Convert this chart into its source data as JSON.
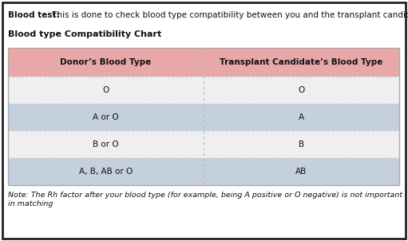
{
  "title_bold": "Blood test:",
  "title_normal": " This is done to check blood type compatibility between you and the transplant candidate.",
  "subtitle": "Blood type Compatibility Chart",
  "col_headers": [
    "Donor’s Blood Type",
    "Transplant Candidate’s Blood Type"
  ],
  "rows": [
    [
      "O",
      "O"
    ],
    [
      "A or O",
      "A"
    ],
    [
      "B or O",
      "B"
    ],
    [
      "A, B, AB or O",
      "AB"
    ]
  ],
  "note": "Note: The Rh factor after your blood type (for example, being A positive or O negative) is not important\nin matching",
  "header_bg": "#e8a8a8",
  "row_bg_light": "#efefef",
  "row_bg_dark": "#c5d0de",
  "border_color": "#222222",
  "outer_bg": "#ffffff",
  "col_divider": "#b0b8c8",
  "row_divider": "#c8c8c8",
  "table_border": "#aaaaaa",
  "title_fontsize": 7.5,
  "subtitle_fontsize": 8.0,
  "header_fontsize": 7.5,
  "cell_fontsize": 7.5,
  "note_fontsize": 6.8
}
